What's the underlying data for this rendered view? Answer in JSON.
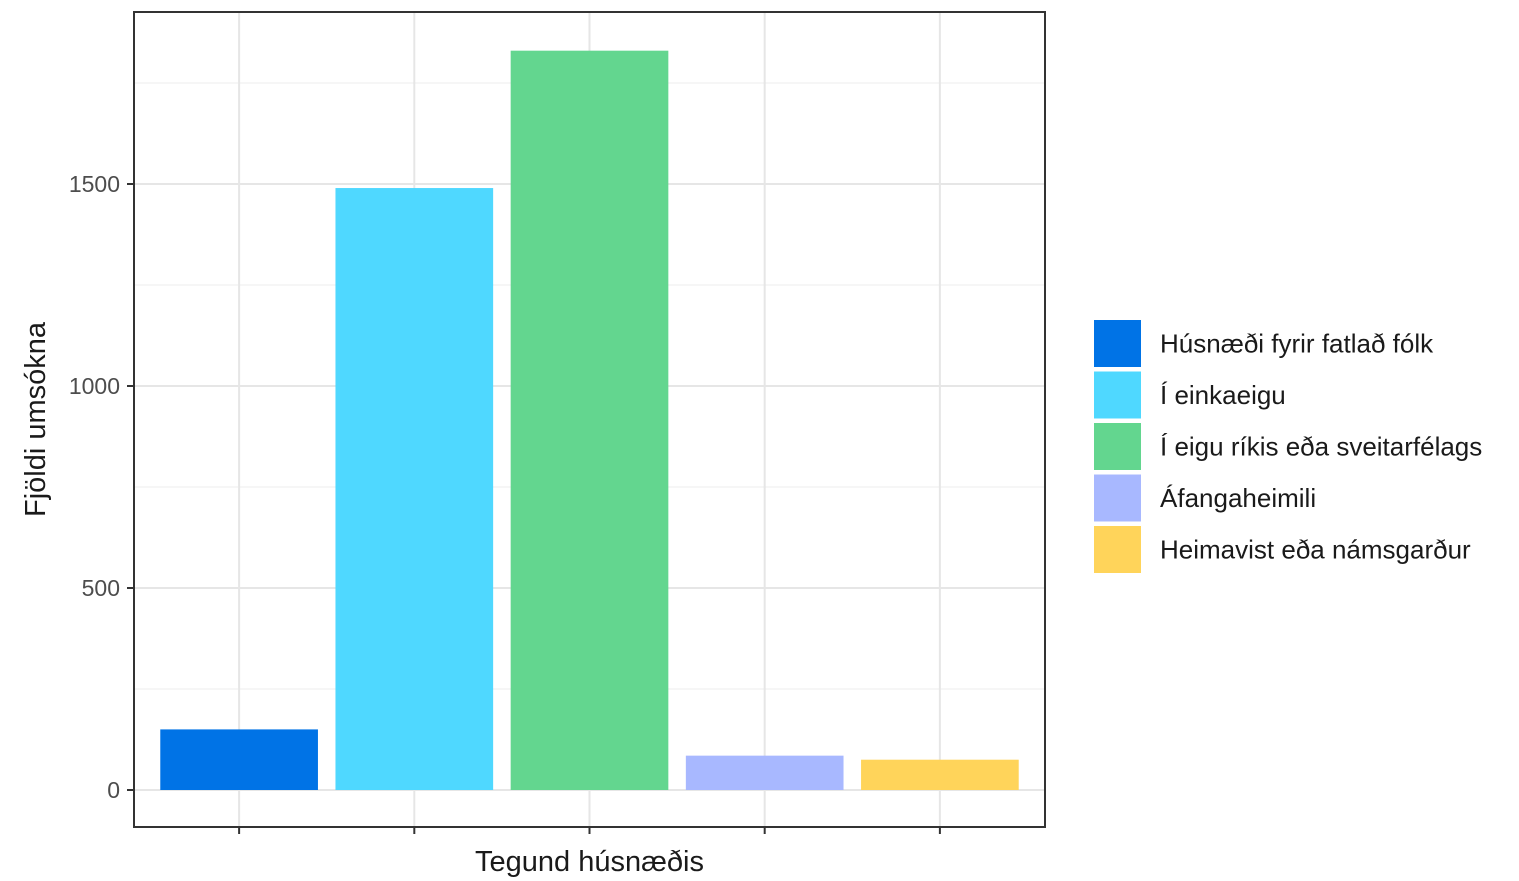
{
  "chart_data": {
    "type": "bar",
    "xlabel": "Tegund húsnæðis",
    "ylabel": "Fjöldi umsókna",
    "ylim": [
      0,
      1900
    ],
    "yticks": [
      0,
      500,
      1000,
      1500
    ],
    "grid": true,
    "legend_position": "right",
    "categories": [
      "Húsnæði fyrir fatlað fólk",
      "Í einkaeigu",
      "Í eigu ríkis eða sveitarfélags",
      "Áfangaheimili",
      "Heimavist eða námsgarður"
    ],
    "values": [
      150,
      1490,
      1830,
      85,
      75
    ],
    "colors": [
      "#0073e6",
      "#4fd8ff",
      "#63d68f",
      "#a8b8ff",
      "#ffd45a"
    ],
    "legend": [
      {
        "label": "Húsnæði fyrir fatlað fólk",
        "color": "#0073e6"
      },
      {
        "label": "Í einkaeigu",
        "color": "#4fd8ff"
      },
      {
        "label": "Í eigu ríkis eða sveitarfélags",
        "color": "#63d68f"
      },
      {
        "label": "Áfangaheimili",
        "color": "#a8b8ff"
      },
      {
        "label": "Heimavist eða námsgarður",
        "color": "#ffd45a"
      }
    ]
  }
}
